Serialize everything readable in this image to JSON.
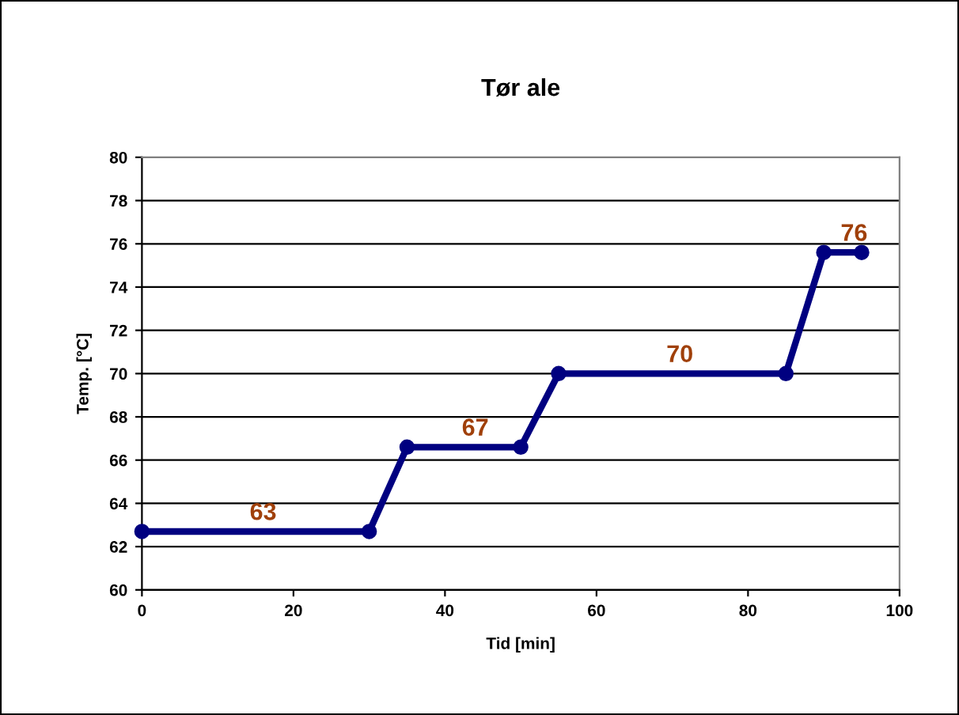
{
  "chart_data": {
    "type": "line",
    "title": "Tør ale",
    "xlabel": "Tid [min]",
    "ylabel": "Temp. [°C]",
    "x": [
      0,
      30,
      35,
      50,
      55,
      85,
      90,
      95
    ],
    "series": [
      {
        "color": "#000080",
        "values": [
          62.7,
          62.7,
          66.6,
          66.6,
          70.0,
          70.0,
          75.6,
          75.6
        ]
      }
    ],
    "annotations": [
      {
        "text": "63",
        "x": 16,
        "y": 62.7
      },
      {
        "text": "67",
        "x": 44,
        "y": 66.6
      },
      {
        "text": "70",
        "x": 71,
        "y": 70.0
      },
      {
        "text": "76",
        "x": 94,
        "y": 75.6
      }
    ],
    "xlim": [
      0,
      100
    ],
    "xticks": [
      0,
      20,
      40,
      60,
      80,
      100
    ],
    "ylim": [
      60,
      80
    ],
    "yticks": [
      60,
      62,
      64,
      66,
      68,
      70,
      72,
      74,
      76,
      78,
      80
    ],
    "grid": "y",
    "marker": "circle",
    "line_style": "solid",
    "legend": false
  }
}
